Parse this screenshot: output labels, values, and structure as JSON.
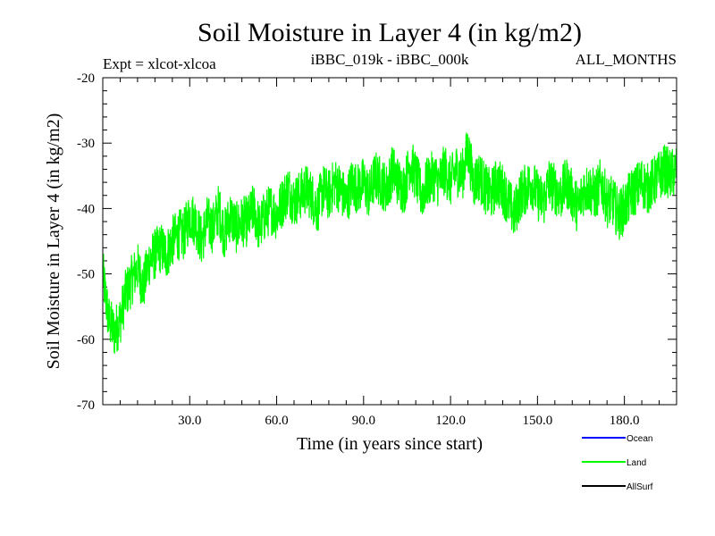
{
  "chart_data": {
    "type": "line",
    "title": "Soil Moisture in Layer 4 (in kg/m2)",
    "subtitle_left": "Expt = xlcot-xlcoa",
    "subtitle_center": "iBBC_019k - iBBC_000k",
    "subtitle_right": "ALL_MONTHS",
    "xlabel": "Time (in years since start)",
    "ylabel": "Soil Moisture in Layer 4 (in kg/m2)",
    "xlim": [
      0,
      198
    ],
    "ylim": [
      -70,
      -20
    ],
    "xticks": [
      30,
      60,
      90,
      120,
      150,
      180
    ],
    "xtick_labels": [
      "30.0",
      "60.0",
      "90.0",
      "120.0",
      "150.0",
      "180.0"
    ],
    "yticks": [
      -70,
      -60,
      -50,
      -40,
      -30,
      -20
    ],
    "ytick_labels": [
      "-70",
      "-60",
      "-50",
      "-40",
      "-30",
      "-20"
    ],
    "legend": [
      {
        "name": "Ocean",
        "color": "#0000ff"
      },
      {
        "name": "Land",
        "color": "#00ff00"
      },
      {
        "name": "AllSurf",
        "color": "#000000"
      }
    ],
    "series": [
      {
        "name": "Land",
        "color": "#00ff00",
        "x": [
          0,
          2,
          4,
          6,
          8,
          10,
          12,
          14,
          16,
          18,
          20,
          22,
          24,
          26,
          28,
          30,
          32,
          34,
          36,
          38,
          40,
          42,
          44,
          46,
          48,
          50,
          52,
          54,
          56,
          58,
          60,
          62,
          64,
          66,
          68,
          70,
          72,
          74,
          76,
          78,
          80,
          82,
          84,
          86,
          88,
          90,
          92,
          94,
          96,
          98,
          100,
          102,
          104,
          106,
          108,
          110,
          112,
          114,
          116,
          118,
          120,
          122,
          124,
          126,
          128,
          130,
          132,
          134,
          136,
          138,
          140,
          142,
          144,
          146,
          148,
          150,
          152,
          154,
          156,
          158,
          160,
          162,
          164,
          166,
          168,
          170,
          172,
          174,
          176,
          178,
          180,
          182,
          184,
          186,
          188,
          190,
          192,
          194,
          196,
          198
        ],
        "values": [
          -50,
          -57,
          -59,
          -57,
          -53,
          -51,
          -49,
          -52,
          -48,
          -47,
          -46,
          -47,
          -45,
          -44,
          -44,
          -41,
          -42,
          -45,
          -42,
          -43,
          -40,
          -44,
          -41,
          -43,
          -42,
          -42,
          -40,
          -43,
          -41,
          -40,
          -41,
          -39,
          -37,
          -39,
          -38,
          -37,
          -38,
          -40,
          -37,
          -38,
          -36,
          -37,
          -39,
          -36,
          -37,
          -36,
          -38,
          -35,
          -36,
          -37,
          -34,
          -36,
          -37,
          -33,
          -35,
          -38,
          -36,
          -35,
          -36,
          -34,
          -36,
          -34,
          -35,
          -31,
          -36,
          -35,
          -37,
          -38,
          -36,
          -37,
          -39,
          -41,
          -38,
          -37,
          -36,
          -38,
          -39,
          -36,
          -37,
          -38,
          -36,
          -38,
          -40,
          -37,
          -37,
          -38,
          -36,
          -39,
          -39,
          -41,
          -40,
          -38,
          -37,
          -36,
          -37,
          -36,
          -35,
          -34,
          -35,
          -34
        ]
      }
    ]
  }
}
